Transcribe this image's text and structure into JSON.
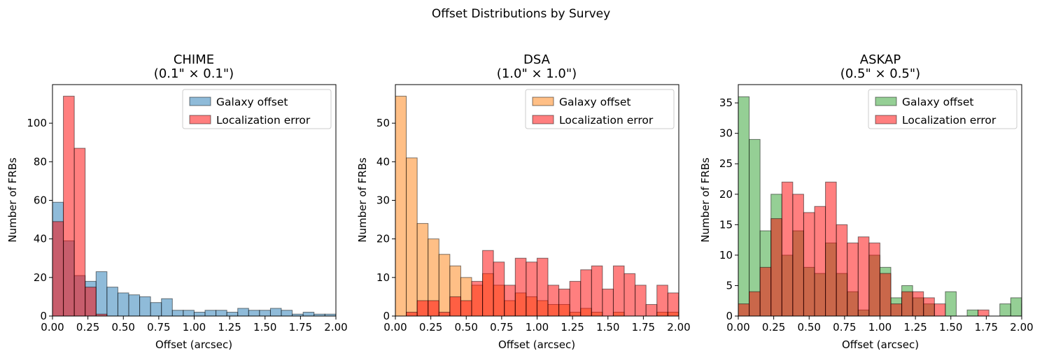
{
  "figure": {
    "suptitle": "Offset Distributions by Survey"
  },
  "colors": {
    "galaxy": [
      "#1f77b4",
      "#ff7f0e",
      "#2ca02c"
    ],
    "localization": "#ff0000",
    "bar_edge": "#000000"
  },
  "chart_data": [
    {
      "type": "bar",
      "title_line1": "CHIME",
      "title_line2": "(0.1\" × 0.1\")",
      "xlabel": "Offset (arcsec)",
      "ylabel": "Number of FRBs",
      "xlim": [
        0,
        2
      ],
      "ylim": [
        0,
        120
      ],
      "xticks": [
        "0.00",
        "0.25",
        "0.50",
        "0.75",
        "1.00",
        "1.25",
        "1.50",
        "1.75",
        "2.00"
      ],
      "yticks": [
        "0",
        "20",
        "40",
        "60",
        "80",
        "100"
      ],
      "legend_placement": "top-right",
      "grid": false,
      "bin_width": 0.0769,
      "series": [
        {
          "name": "Galaxy offset",
          "alpha": 0.5,
          "values": [
            59,
            39,
            21,
            18,
            23,
            15,
            12,
            11,
            10,
            7,
            9,
            3,
            3,
            2,
            3,
            3,
            2,
            4,
            3,
            3,
            4,
            3,
            1,
            2,
            1,
            1,
            0,
            1
          ]
        },
        {
          "name": "Localization error",
          "alpha": 0.5,
          "values": [
            49,
            114,
            87,
            15,
            1,
            0,
            0,
            0,
            0,
            0,
            0,
            0,
            0,
            0,
            0,
            0,
            0,
            0,
            0,
            0,
            0,
            0,
            0,
            0,
            0,
            0,
            0,
            0
          ]
        }
      ]
    },
    {
      "type": "bar",
      "title_line1": "DSA",
      "title_line2": "(1.0\" × 1.0\")",
      "xlabel": "Offset (arcsec)",
      "ylabel": "Number of FRBs",
      "xlim": [
        0,
        2
      ],
      "ylim": [
        0,
        60
      ],
      "xticks": [
        "0.00",
        "0.25",
        "0.50",
        "0.75",
        "1.00",
        "1.25",
        "1.50",
        "1.75",
        "2.00"
      ],
      "yticks": [
        "0",
        "10",
        "20",
        "30",
        "40",
        "50"
      ],
      "legend_placement": "top-right",
      "grid": false,
      "bin_width": 0.0769,
      "series": [
        {
          "name": "Galaxy offset",
          "alpha": 0.5,
          "values": [
            57,
            41,
            24,
            20,
            16,
            13,
            10,
            8,
            11,
            8,
            4,
            6,
            5,
            4,
            3,
            3,
            1,
            2,
            1,
            0,
            1,
            0,
            0,
            0,
            1,
            1,
            1
          ]
        },
        {
          "name": "Localization error",
          "alpha": 0.5,
          "values": [
            0,
            1,
            4,
            4,
            1,
            5,
            4,
            9,
            17,
            14,
            8,
            15,
            14,
            15,
            8,
            7,
            9,
            12,
            13,
            7,
            13,
            11,
            8,
            3,
            8,
            6,
            5
          ]
        }
      ]
    },
    {
      "type": "bar",
      "title_line1": "ASKAP",
      "title_line2": "(0.5\" × 0.5\")",
      "xlabel": "Offset (arcsec)",
      "ylabel": "Number of FRBs",
      "xlim": [
        0,
        2
      ],
      "ylim": [
        0,
        38
      ],
      "xticks": [
        "0.00",
        "0.25",
        "0.50",
        "0.75",
        "1.00",
        "1.25",
        "1.50",
        "1.75",
        "2.00"
      ],
      "yticks": [
        "0",
        "5",
        "10",
        "15",
        "20",
        "25",
        "30",
        "35"
      ],
      "legend_placement": "top-right",
      "grid": false,
      "bin_width": 0.0769,
      "series": [
        {
          "name": "Galaxy offset",
          "alpha": 0.5,
          "values": [
            36,
            29,
            14,
            20,
            10,
            14,
            8,
            7,
            12,
            7,
            4,
            1,
            10,
            8,
            3,
            5,
            3,
            2,
            0,
            4,
            0,
            1,
            0,
            0,
            2,
            3,
            2
          ]
        },
        {
          "name": "Localization error",
          "alpha": 0.5,
          "values": [
            2,
            4,
            8,
            16,
            22,
            20,
            17,
            18,
            22,
            15,
            12,
            13,
            12,
            7,
            2,
            4,
            4,
            3,
            2,
            0,
            0,
            0,
            1,
            0,
            0,
            0,
            0
          ]
        }
      ]
    }
  ]
}
